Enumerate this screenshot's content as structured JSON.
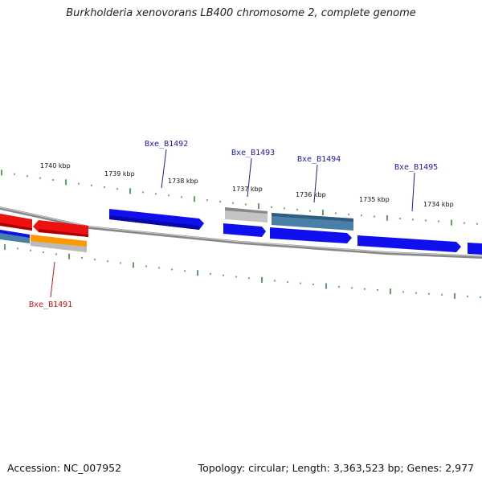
{
  "title": "Burkholderia xenovorans LB400 chromosome 2, complete genome",
  "footer": {
    "accession": "Accession: NC_007952",
    "summary": "Topology: circular; Length: 3,363,523 bp; Genes: 2,977"
  },
  "colors": {
    "backbone": "#8a8a8a",
    "tick": "#228822",
    "forward_gene": "#1010ee",
    "steelblue_gene": "#4a7fa8",
    "red_gene": "#ee1111",
    "orange_gene": "#ff9900",
    "gray_gene": "#bbbbbb",
    "gene_label": "#1a1aaa",
    "highlight_label": "#cc1111"
  },
  "scale_labels": [
    "1740 kbp",
    "1739 kbp",
    "1738 kbp",
    "1737 kbp",
    "1736 kbp",
    "1735 kbp",
    "1734 kbp"
  ],
  "gene_labels": [
    "Bxe_B1491",
    "Bxe_B1492",
    "Bxe_B1493",
    "Bxe_B1494",
    "Bxe_B1495"
  ]
}
